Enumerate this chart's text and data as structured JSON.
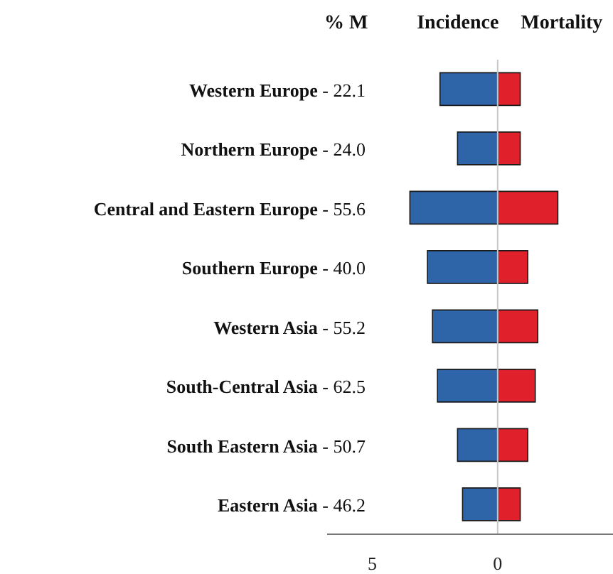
{
  "chart_data": {
    "type": "bar",
    "orientation": "horizontal",
    "stacked": true,
    "categories": [
      "Western Europe - 22.1",
      "Northern Europe - 24.0",
      "Central and Eastern Europe - 55.6",
      "Southern Europe - 40.0",
      "Western Asia - 55.2",
      "South-Central Asia - 62.5",
      "South Eastern Asia - 50.7",
      "Eastern Asia - 46.2"
    ],
    "series": [
      {
        "name": "Incidence",
        "color": "#2e64a8",
        "values": [
          -2.3,
          -1.6,
          -3.5,
          -2.8,
          -2.6,
          -2.4,
          -1.6,
          -1.4
        ]
      },
      {
        "name": "Mortality",
        "color": "#e0202a",
        "values": [
          0.9,
          0.9,
          2.4,
          1.2,
          1.6,
          1.5,
          1.2,
          0.9
        ]
      }
    ],
    "xlim": [
      -6.8,
      4.6
    ],
    "xticks": [
      {
        "value": -5,
        "label": "5"
      },
      0
    ],
    "ref_lines": [
      {
        "axis": "x",
        "value": 0,
        "color": "#c8c8c8"
      }
    ],
    "annotations": [
      "% M"
    ]
  }
}
